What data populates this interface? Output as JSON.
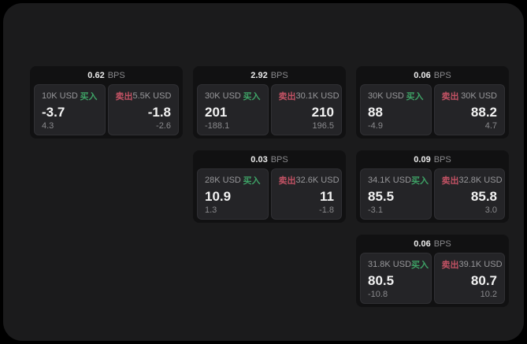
{
  "labels": {
    "bps": "BPS",
    "buy": "买入",
    "sell": "卖出"
  },
  "colors": {
    "outer_background": "#000000",
    "window_background": "#1b1b1c",
    "card_background": "#111112",
    "tile_background": "#242427",
    "tile_border": "#303034",
    "text_primary": "#f2f2f2",
    "text_muted": "#8a8a8d",
    "buy_green": "#3ea266",
    "sell_red": "#c25264"
  },
  "cards": [
    {
      "bps": "0.62",
      "buy": {
        "amount": "10K USD",
        "value": "-3.7",
        "delta": "4.3"
      },
      "sell": {
        "amount": "5.5K USD",
        "value": "-1.8",
        "delta": "-2.6"
      }
    },
    {
      "bps": "2.92",
      "buy": {
        "amount": "30K USD",
        "value": "201",
        "delta": "-188.1"
      },
      "sell": {
        "amount": "30.1K USD",
        "value": "210",
        "delta": "196.5"
      }
    },
    {
      "bps": "0.06",
      "buy": {
        "amount": "30K USD",
        "value": "88",
        "delta": "-4.9"
      },
      "sell": {
        "amount": "30K USD",
        "value": "88.2",
        "delta": "4.7"
      }
    },
    {
      "bps": "0.03",
      "buy": {
        "amount": "28K USD",
        "value": "10.9",
        "delta": "1.3"
      },
      "sell": {
        "amount": "32.6K USD",
        "value": "11",
        "delta": "-1.8"
      }
    },
    {
      "bps": "0.09",
      "buy": {
        "amount": "34.1K USD",
        "value": "85.5",
        "delta": "-3.1"
      },
      "sell": {
        "amount": "32.8K USD",
        "value": "85.8",
        "delta": "3.0"
      }
    },
    {
      "bps": "0.06",
      "buy": {
        "amount": "31.8K USD",
        "value": "80.5",
        "delta": "-10.8"
      },
      "sell": {
        "amount": "39.1K USD",
        "value": "80.7",
        "delta": "10.2"
      }
    }
  ]
}
